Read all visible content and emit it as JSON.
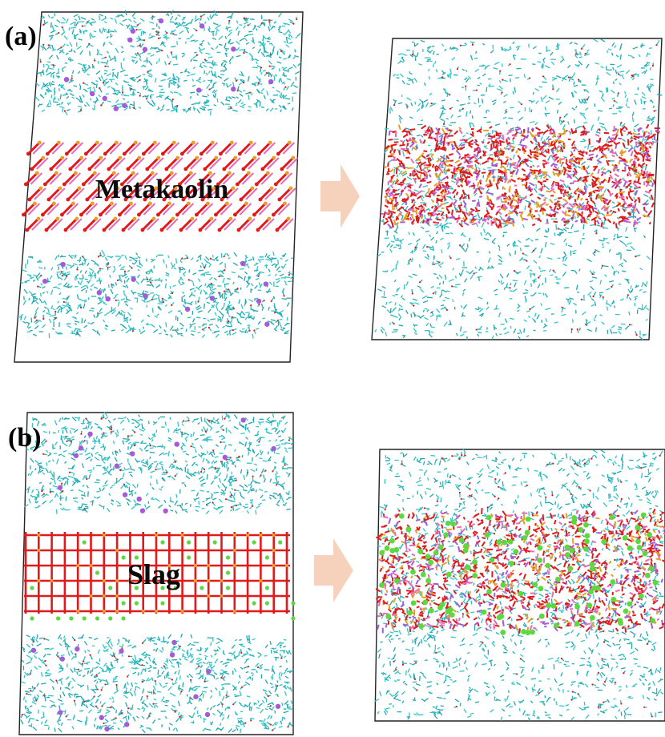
{
  "panels": [
    {
      "id": "a",
      "label": "(a)",
      "material": "Metakaolin",
      "lattice": "diagonal"
    },
    {
      "id": "b",
      "label": "(b)",
      "material": "Slag",
      "lattice": "grid"
    }
  ],
  "colors": {
    "water": "#31c4c8",
    "water_dark": "#1fa9b0",
    "oxygen": "#e01a1a",
    "silicon": "#e8a020",
    "aluminium": "#e86ab8",
    "sodium": "#a55ad8",
    "calcium": "#5ed840",
    "arrow": "#f6d2bc",
    "frame": "#222222"
  }
}
